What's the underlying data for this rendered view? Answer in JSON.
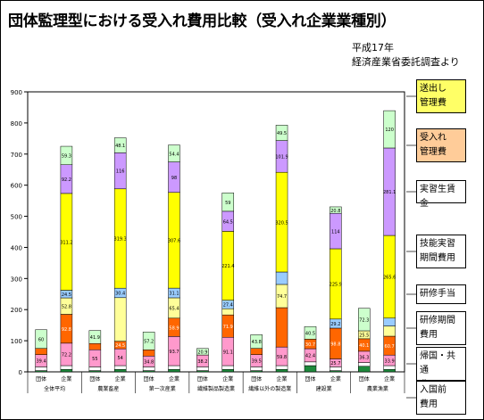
{
  "title": "団体監理型における受入れ費用比較（受入れ企業業種別）",
  "source": [
    "平成17年",
    "経済産業省委託調査より"
  ],
  "chart_data": {
    "type": "bar",
    "stacked": true,
    "ylim": [
      0,
      900
    ],
    "yticks": [
      0,
      100,
      200,
      300,
      400,
      500,
      600,
      700,
      800,
      900
    ],
    "groups": [
      "全体平均",
      "農業畜産",
      "第一次産業",
      "繊維製品製造業",
      "繊維以外の製造業",
      "建設業",
      "農業漁業"
    ],
    "subcats": [
      "団体",
      "企業"
    ],
    "series": [
      {
        "name": "入国前費用",
        "color": "#1e8a3c"
      },
      {
        "name": "帰国・共通費用",
        "color": "#ffffff"
      },
      {
        "name": "研修期間費用",
        "color": "#ff99cc"
      },
      {
        "name": "研修手当",
        "color": "#ff6600"
      },
      {
        "name": "実習生賃金",
        "color": "#ffff99"
      },
      {
        "name": "技能実習期間費用",
        "color": "#99ccff"
      },
      {
        "name": "受入れ管理費",
        "color": "#ffff00"
      },
      {
        "name": "送出し管理費",
        "color": "#cc99ff"
      }
    ],
    "stack_order": [
      "入国前費用",
      "帰国・共通費用",
      "研修期間費用",
      "研修手当",
      "実習生賃金",
      "技能実習期間費用",
      "受入れ管理費",
      "送出し管理費",
      "top"
    ],
    "bars": [
      {
        "group": "全体平均",
        "sub": "団体",
        "values": [
          4,
          12,
          39.4,
          20,
          0,
          0,
          0,
          0,
          60
        ],
        "labels": [
          "",
          "",
          "39.4",
          "",
          "",
          "",
          "",
          "",
          "60"
        ]
      },
      {
        "group": "全体平均",
        "sub": "企業",
        "values": [
          8,
          12,
          72.2,
          92.8,
          52.8,
          24.5,
          311.2,
          92.2,
          59.3
        ],
        "labels": [
          "",
          "",
          "72.2",
          "92.8",
          "52.8",
          "24.5",
          "311.2",
          "92.2",
          "59.3"
        ]
      },
      {
        "group": "農業畜産",
        "sub": "団体",
        "values": [
          4,
          12,
          55,
          20,
          0,
          0,
          0,
          0,
          41.9
        ],
        "labels": [
          "",
          "",
          "55",
          "",
          "",
          "",
          "",
          "",
          "41.9"
        ]
      },
      {
        "group": "農業畜産",
        "sub": "企業",
        "values": [
          8,
          12,
          54,
          24.5,
          140,
          30.4,
          319.3,
          116,
          48.1
        ],
        "labels": [
          "",
          "",
          "54",
          "24.5",
          "",
          "30.4",
          "319.3",
          "116",
          "48.1"
        ]
      },
      {
        "group": "第一次産業",
        "sub": "団体",
        "values": [
          4,
          12,
          34.8,
          20,
          0,
          0,
          0,
          0,
          57.2
        ],
        "labels": [
          "",
          "",
          "34.8",
          "",
          "",
          "",
          "",
          "",
          "57.2"
        ]
      },
      {
        "group": "第一次産業",
        "sub": "企業",
        "values": [
          8,
          12,
          93.7,
          58.9,
          65.4,
          31.1,
          307.6,
          98,
          54.4
        ],
        "labels": [
          "",
          "",
          "93.7",
          "58.9",
          "65.4",
          "31.1",
          "307.6",
          "98",
          "54.4"
        ]
      },
      {
        "group": "繊維製品製造業",
        "sub": "団体",
        "values": [
          4,
          12,
          38.2,
          0,
          0,
          0,
          0,
          0,
          20.9
        ],
        "labels": [
          "",
          "",
          "38.2",
          "",
          "",
          "",
          "",
          "",
          "20.9"
        ]
      },
      {
        "group": "繊維製品製造業",
        "sub": "企業",
        "values": [
          8,
          12,
          91.1,
          71.9,
          19.9,
          27.4,
          221.4,
          64.5,
          59
        ],
        "labels": [
          "",
          "",
          "91.1",
          "71.9",
          "19.9",
          "27.4",
          "221.4",
          "64.5",
          "59"
        ]
      },
      {
        "group": "繊維以外の製造業",
        "sub": "団体",
        "values": [
          4,
          12,
          39.5,
          20,
          0,
          0,
          0,
          0,
          43.8
        ],
        "labels": [
          "",
          "",
          "39.5",
          "",
          "",
          "",
          "",
          "",
          "43.8"
        ]
      },
      {
        "group": "繊維以外の製造業",
        "sub": "企業",
        "values": [
          8,
          12,
          59.8,
          126.5,
          74.7,
          40,
          320.5,
          101.9,
          49.5
        ],
        "labels": [
          "",
          "",
          "59.8",
          "",
          "74.7",
          "",
          "320.5",
          "101.9",
          "49.5"
        ]
      },
      {
        "group": "建設業",
        "sub": "団体",
        "values": [
          20,
          12,
          42.4,
          30.7,
          0,
          0,
          0,
          0,
          40.5
        ],
        "labels": [
          "",
          "",
          "42.4",
          "30.7",
          "",
          "",
          "",
          "",
          "40.5"
        ]
      },
      {
        "group": "建設業",
        "sub": "企業",
        "values": [
          4,
          12,
          25.7,
          98.8,
          0,
          29.2,
          225.9,
          114,
          20.8
        ],
        "labels": [
          "",
          "",
          "25.7",
          "98.8",
          "",
          "29.2",
          "225.9",
          "114",
          "20.8"
        ]
      },
      {
        "group": "農業漁業",
        "sub": "団体",
        "values": [
          18,
          12,
          36.3,
          40.1,
          25.5,
          0,
          0,
          0,
          72.3
        ],
        "labels": [
          "",
          "",
          "36.3",
          "40.1",
          "25.5",
          "",
          "",
          "",
          "72.3"
        ]
      },
      {
        "group": "農業漁業",
        "sub": "企業",
        "values": [
          8,
          12,
          33.9,
          60.7,
          32.7,
          25.5,
          265.6,
          281.1,
          120
        ],
        "labels": [
          "",
          "",
          "33.9",
          "60.7",
          "",
          "",
          "265.6",
          "281.1",
          "120"
        ]
      }
    ]
  },
  "legend_boxes": [
    {
      "name": "送出し管理費",
      "lines": [
        "送出し",
        "管理費"
      ],
      "color": "#ffff66"
    },
    {
      "name": "受入れ管理費",
      "lines": [
        "受入れ",
        "管理費"
      ],
      "color": "#ffcc99"
    },
    {
      "name": "実習生賃金",
      "lines": [
        "実習生賃金"
      ],
      "color": "#ffffff"
    },
    {
      "name": "技能実習期間費用",
      "lines": [
        "技能実習",
        "期間費用"
      ],
      "color": "#ffffff"
    },
    {
      "name": "研修手当",
      "lines": [
        "研修手当"
      ],
      "color": "#ffffff"
    },
    {
      "name": "研修期間費用",
      "lines": [
        "研修期間",
        "費用"
      ],
      "color": "#ffffff"
    },
    {
      "name": "帰国・共通費用",
      "lines": [
        "帰国・共通",
        "費用"
      ],
      "color": "#ffffff"
    },
    {
      "name": "入国前費用",
      "lines": [
        "入国前",
        "費用"
      ],
      "color": "#ffffff"
    }
  ]
}
